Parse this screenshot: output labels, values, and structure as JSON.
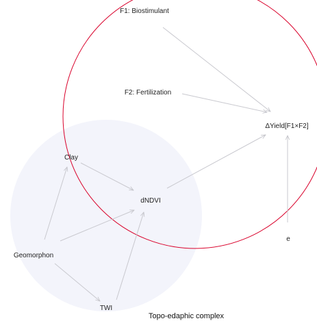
{
  "diagram": {
    "regions": [
      {
        "id": "topo",
        "label": "Topo-edaphic complex",
        "fill": "#f3f4fb"
      }
    ],
    "treatment_region": {
      "stroke": "#d9002a"
    },
    "nodes": [
      {
        "id": "f1",
        "label": "F1: Biostimulant"
      },
      {
        "id": "f2",
        "label": "F2: Fertilization"
      },
      {
        "id": "dyield",
        "label": "ΔYield[F1×F2]"
      },
      {
        "id": "clay",
        "label": "Clay"
      },
      {
        "id": "dndvi",
        "label": "dNDVI"
      },
      {
        "id": "e",
        "label": "e"
      },
      {
        "id": "geomorphon",
        "label": "Geomorphon"
      },
      {
        "id": "twi",
        "label": "TWI"
      }
    ],
    "edges": [
      {
        "from": "f1",
        "to": "dyield"
      },
      {
        "from": "f2",
        "to": "dyield"
      },
      {
        "from": "dndvi",
        "to": "dyield"
      },
      {
        "from": "e",
        "to": "dyield"
      },
      {
        "from": "clay",
        "to": "dndvi"
      },
      {
        "from": "geomorphon",
        "to": "clay"
      },
      {
        "from": "geomorphon",
        "to": "dndvi"
      },
      {
        "from": "geomorphon",
        "to": "twi"
      },
      {
        "from": "twi",
        "to": "dndvi"
      }
    ],
    "colors": {
      "edge": "#c9c9cf",
      "text": "#1f1f1f"
    }
  }
}
